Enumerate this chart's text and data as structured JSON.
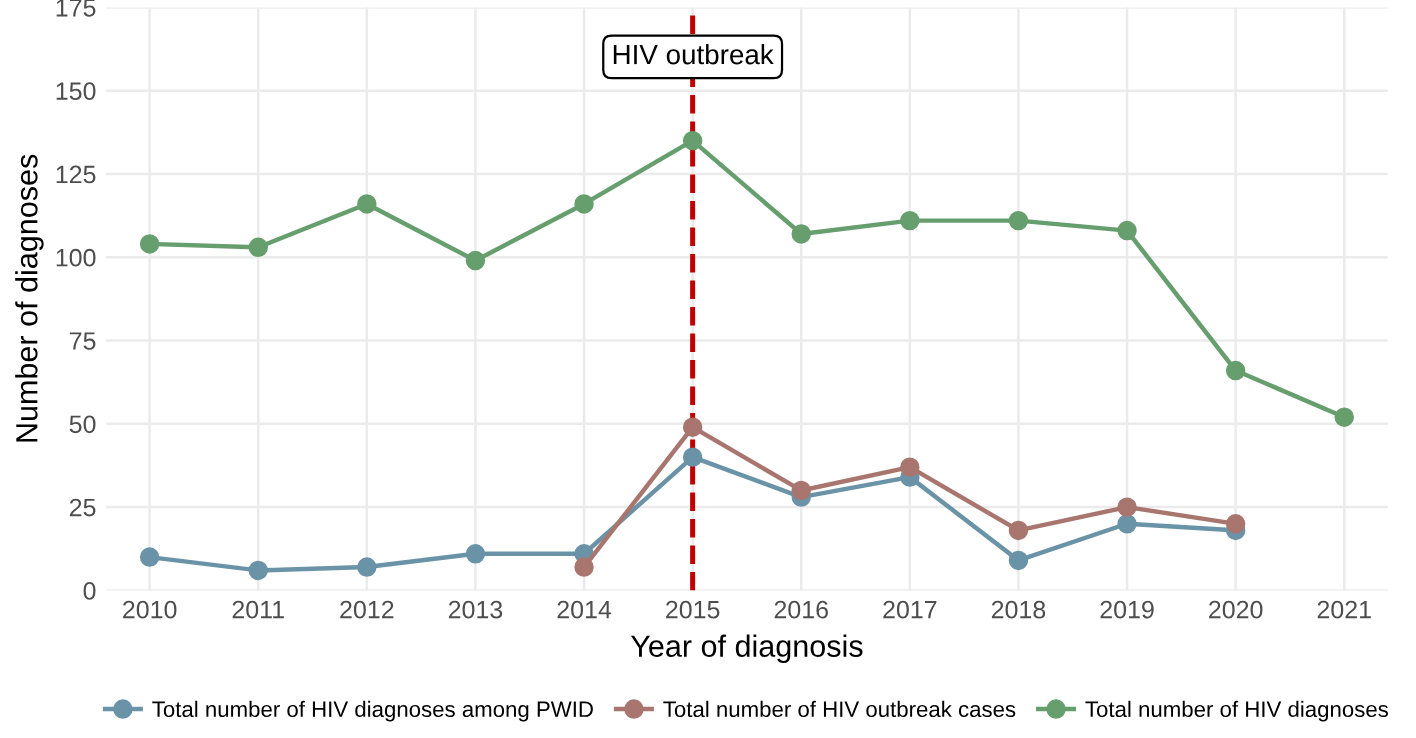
{
  "chart_data": {
    "type": "line",
    "xlabel": "Year of diagnosis",
    "ylabel": "Number of diagnoses",
    "x": [
      2010,
      2011,
      2012,
      2013,
      2014,
      2015,
      2016,
      2017,
      2018,
      2019,
      2020,
      2021
    ],
    "series": [
      {
        "name": "Total number of HIV diagnoses among PWID",
        "color": "#6a93a8",
        "values": [
          10,
          6,
          7,
          11,
          11,
          40,
          28,
          34,
          9,
          20,
          18,
          null
        ]
      },
      {
        "name": "Total number of HIV outbreak cases",
        "color": "#a8766e",
        "values": [
          null,
          null,
          null,
          null,
          7,
          49,
          30,
          37,
          18,
          25,
          20,
          null
        ]
      },
      {
        "name": "Total number of HIV diagnoses",
        "color": "#669e6e",
        "values": [
          104,
          103,
          116,
          99,
          116,
          135,
          107,
          111,
          111,
          108,
          66,
          52
        ]
      }
    ],
    "xlim": [
      2009.6,
      2021.4
    ],
    "xticks": [
      2010,
      2011,
      2012,
      2013,
      2014,
      2015,
      2016,
      2017,
      2018,
      2019,
      2020,
      2021
    ],
    "ylim": [
      0,
      175
    ],
    "yticks": [
      0,
      25,
      50,
      75,
      100,
      125,
      150,
      175
    ],
    "ref_lines": [
      {
        "axis": "x",
        "value": 2015,
        "label": "HIV outbreak",
        "color": "#c00000",
        "line_style": "dashed"
      }
    ],
    "grid": true,
    "legend": "bottom",
    "marker": "circle",
    "line_style": "solid"
  }
}
